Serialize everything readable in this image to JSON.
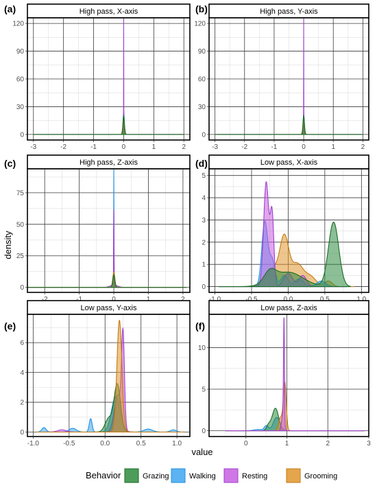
{
  "figure": {
    "ylabel": "density",
    "xlabel": "value",
    "legend": {
      "title": "Behavior",
      "position": "bottom",
      "items": [
        {
          "name": "Grazing",
          "fill": "#2e8b3e",
          "stroke": "#1a6b25"
        },
        {
          "name": "Walking",
          "fill": "#3fa6ee",
          "stroke": "#1f8fe0"
        },
        {
          "name": "Resting",
          "fill": "#c65fe0",
          "stroke": "#a23fd0"
        },
        {
          "name": "Grooming",
          "fill": "#e0952e",
          "stroke": "#c27a12"
        }
      ]
    }
  },
  "chart_data": [
    {
      "letter": "(a)",
      "title": "High pass, X-axis",
      "type": "area",
      "xlim": [
        -3.2,
        2.2
      ],
      "ylim": [
        -6,
        126
      ],
      "xticks": [
        -3,
        -2,
        -1,
        0,
        1,
        2
      ],
      "xtick_labels": [
        "-3",
        "-2",
        "-1",
        "0",
        "1",
        "2"
      ],
      "yticks": [
        0,
        30,
        60,
        90,
        120
      ],
      "ytick_labels": [
        "0",
        "30",
        "60",
        "90",
        "120"
      ],
      "series": [
        {
          "name": "Walking",
          "peaks": [
            {
              "c": 0.0,
              "h": 24,
              "w": 0.02
            }
          ],
          "x_range": [
            -3,
            2
          ]
        },
        {
          "name": "Resting",
          "peaks": [
            {
              "c": 0.0,
              "h": 122,
              "w": 0.003
            },
            {
              "c": 0.0,
              "h": 3,
              "w": 0.02
            }
          ],
          "x_range": [
            -3,
            2
          ]
        },
        {
          "name": "Grooming",
          "peaks": [
            {
              "c": 0.0,
              "h": 14,
              "w": 0.03
            }
          ],
          "x_range": [
            -3,
            2
          ]
        },
        {
          "name": "Grazing",
          "peaks": [
            {
              "c": 0.0,
              "h": 20,
              "w": 0.025
            }
          ],
          "x_range": [
            -3,
            2
          ]
        }
      ]
    },
    {
      "letter": "(b)",
      "title": "High pass, Y-axis",
      "type": "area",
      "xlim": [
        -3.2,
        2.2
      ],
      "ylim": [
        -6,
        126
      ],
      "xticks": [
        -3,
        -2,
        -1,
        0,
        1,
        2
      ],
      "xtick_labels": [
        "-3",
        "-2",
        "-1",
        "0",
        "1",
        "2"
      ],
      "yticks": [
        0,
        30,
        60,
        90,
        120
      ],
      "ytick_labels": [
        "0",
        "30",
        "60",
        "90",
        "120"
      ],
      "series": [
        {
          "name": "Walking",
          "peaks": [
            {
              "c": 0.0,
              "h": 22,
              "w": 0.02
            }
          ],
          "x_range": [
            -3,
            2
          ]
        },
        {
          "name": "Resting",
          "peaks": [
            {
              "c": 0.0,
              "h": 122,
              "w": 0.003
            },
            {
              "c": 0.0,
              "h": 3,
              "w": 0.02
            }
          ],
          "x_range": [
            -3,
            2
          ]
        },
        {
          "name": "Grooming",
          "peaks": [
            {
              "c": 0.0,
              "h": 13,
              "w": 0.03
            }
          ],
          "x_range": [
            -3,
            2
          ]
        },
        {
          "name": "Grazing",
          "peaks": [
            {
              "c": 0.0,
              "h": 20,
              "w": 0.025
            }
          ],
          "x_range": [
            -3,
            2
          ]
        }
      ]
    },
    {
      "letter": "(c)",
      "title": "High pass, Z-axis",
      "type": "area",
      "xlim": [
        -2.5,
        2.2
      ],
      "ylim": [
        -4,
        94
      ],
      "xticks": [
        -2,
        -1,
        0,
        1,
        2
      ],
      "xtick_labels": [
        "-2",
        "-1",
        "0",
        "1",
        "2"
      ],
      "yticks": [
        0,
        25,
        50,
        75
      ],
      "ytick_labels": [
        "0",
        "25",
        "50",
        "75"
      ],
      "series": [
        {
          "name": "Walking",
          "peaks": [
            {
              "c": 0.0,
              "h": 90,
              "w": 0.004
            },
            {
              "c": 0.0,
              "h": 5,
              "w": 0.03
            }
          ],
          "x_range": [
            -2.5,
            2.1
          ]
        },
        {
          "name": "Resting",
          "peaks": [
            {
              "c": 0.0,
              "h": 60,
              "w": 0.006
            },
            {
              "c": 0.0,
              "h": 2,
              "w": 0.1
            }
          ],
          "x_range": [
            -2.5,
            2.1
          ]
        },
        {
          "name": "Grooming",
          "peaks": [
            {
              "c": 0.0,
              "h": 12,
              "w": 0.03
            }
          ],
          "x_range": [
            -2.5,
            2.1
          ]
        },
        {
          "name": "Grazing",
          "peaks": [
            {
              "c": 0.0,
              "h": 10,
              "w": 0.03
            }
          ],
          "x_range": [
            -2.5,
            2.1
          ]
        }
      ]
    },
    {
      "letter": "(d)",
      "title": "Low pass, X-axis",
      "type": "area",
      "xlim": [
        -1.08,
        1.1
      ],
      "ylim": [
        -0.26,
        5.3
      ],
      "xticks": [
        -1,
        -0.5,
        0,
        0.5,
        1
      ],
      "xtick_labels": [
        "-1.0",
        "-0.5",
        "0.0",
        "0.5",
        "1.0"
      ],
      "yticks": [
        0,
        1,
        2,
        3,
        4,
        5
      ],
      "ytick_labels": [
        "0",
        "1",
        "2",
        "3",
        "4",
        "5"
      ],
      "series": [
        {
          "name": "Grooming",
          "peaks": [
            {
              "c": -0.05,
              "h": 2.0,
              "w": 0.06
            },
            {
              "c": 0.12,
              "h": 1.0,
              "w": 0.08
            },
            {
              "c": 0.3,
              "h": 0.45,
              "w": 0.08
            },
            {
              "c": -0.2,
              "h": 0.8,
              "w": 0.1
            },
            {
              "c": 0.55,
              "h": 0.25,
              "w": 0.05
            }
          ],
          "x_range": [
            -0.95,
            0.9
          ]
        },
        {
          "name": "Walking",
          "peaks": [
            {
              "c": -0.32,
              "h": 2.9,
              "w": 0.04
            },
            {
              "c": -0.22,
              "h": 1.2,
              "w": 0.04
            },
            {
              "c": -0.05,
              "h": 0.5,
              "w": 0.05
            },
            {
              "c": 0.15,
              "h": 0.35,
              "w": 0.06
            },
            {
              "c": 0.45,
              "h": 0.25,
              "w": 0.06
            }
          ],
          "x_range": [
            -0.95,
            0.8
          ]
        },
        {
          "name": "Resting",
          "peaks": [
            {
              "c": -0.3,
              "h": 4.7,
              "w": 0.035
            },
            {
              "c": -0.22,
              "h": 3.2,
              "w": 0.025
            },
            {
              "c": 0.0,
              "h": 0.6,
              "w": 0.06
            },
            {
              "c": 0.2,
              "h": 0.5,
              "w": 0.05
            }
          ],
          "x_range": [
            -0.95,
            0.8
          ]
        },
        {
          "name": "Grazing",
          "peaks": [
            {
              "c": 0.62,
              "h": 2.9,
              "w": 0.07
            },
            {
              "c": 0.0,
              "h": 0.65,
              "w": 0.2
            },
            {
              "c": -0.25,
              "h": 0.5,
              "w": 0.08
            }
          ],
          "x_range": [
            -0.95,
            0.85
          ]
        }
      ]
    },
    {
      "letter": "(e)",
      "title": "Low pass, Y-axis",
      "type": "area",
      "xlim": [
        -1.08,
        1.18
      ],
      "ylim": [
        -0.3,
        7.9
      ],
      "xticks": [
        -1,
        -0.5,
        0,
        0.5,
        1
      ],
      "xtick_labels": [
        "-1.0",
        "-0.5",
        "0.0",
        "0.5",
        "1.0"
      ],
      "yticks": [
        0,
        2,
        4,
        6
      ],
      "ytick_labels": [
        "0",
        "2",
        "4",
        "6"
      ],
      "series": [
        {
          "name": "Walking",
          "peaks": [
            {
              "c": 0.15,
              "h": 2.4,
              "w": 0.06
            },
            {
              "c": -0.2,
              "h": 0.9,
              "w": 0.02
            },
            {
              "c": -0.45,
              "h": 0.25,
              "w": 0.05
            },
            {
              "c": -0.85,
              "h": 0.3,
              "w": 0.03
            },
            {
              "c": 0.6,
              "h": 0.2,
              "w": 0.06
            },
            {
              "c": 0.95,
              "h": 0.15,
              "w": 0.04
            }
          ],
          "x_range": [
            -0.95,
            1.1
          ]
        },
        {
          "name": "Resting",
          "peaks": [
            {
              "c": 0.25,
              "h": 6.0,
              "w": 0.02
            },
            {
              "c": 0.18,
              "h": 2.5,
              "w": 0.05
            },
            {
              "c": -0.6,
              "h": 0.15,
              "w": 0.06
            }
          ],
          "x_range": [
            -0.95,
            1.1
          ]
        },
        {
          "name": "Grazing",
          "peaks": [
            {
              "c": 0.17,
              "h": 3.2,
              "w": 0.045
            },
            {
              "c": 0.05,
              "h": 0.9,
              "w": 0.05
            }
          ],
          "x_range": [
            -0.95,
            1.1
          ]
        },
        {
          "name": "Grooming",
          "peaks": [
            {
              "c": 0.2,
              "h": 7.5,
              "w": 0.035
            }
          ],
          "x_range": [
            -0.95,
            1.1
          ]
        }
      ]
    },
    {
      "letter": "(f)",
      "title": "Low pass, Z-axis",
      "type": "area",
      "xlim": [
        -0.9,
        3.0
      ],
      "ylim": [
        -0.7,
        14.0
      ],
      "xticks": [
        0,
        1,
        2,
        3
      ],
      "xtick_labels": [
        "0",
        "1",
        "2",
        "3"
      ],
      "yticks": [
        0,
        5,
        10
      ],
      "ytick_labels": [
        "0",
        "5",
        "10"
      ],
      "series": [
        {
          "name": "Walking",
          "peaks": [
            {
              "c": 0.75,
              "h": 1.6,
              "w": 0.08
            },
            {
              "c": 0.5,
              "h": 0.6,
              "w": 0.05
            },
            {
              "c": 0.3,
              "h": 0.15,
              "w": 0.1
            }
          ],
          "x_range": [
            -0.5,
            2.9
          ]
        },
        {
          "name": "Grazing",
          "peaks": [
            {
              "c": 0.72,
              "h": 2.7,
              "w": 0.08
            },
            {
              "c": 0.55,
              "h": 0.6,
              "w": 0.05
            }
          ],
          "x_range": [
            -0.5,
            2.9
          ]
        },
        {
          "name": "Grooming",
          "peaks": [
            {
              "c": 0.95,
              "h": 5.7,
              "w": 0.035
            },
            {
              "c": 0.85,
              "h": 1.6,
              "w": 0.05
            }
          ],
          "x_range": [
            -0.5,
            2.9
          ]
        },
        {
          "name": "Resting",
          "peaks": [
            {
              "c": 0.93,
              "h": 12.5,
              "w": 0.012
            },
            {
              "c": 0.9,
              "h": 2.0,
              "w": 0.03
            }
          ],
          "x_range": [
            -0.5,
            2.9
          ]
        }
      ]
    }
  ]
}
